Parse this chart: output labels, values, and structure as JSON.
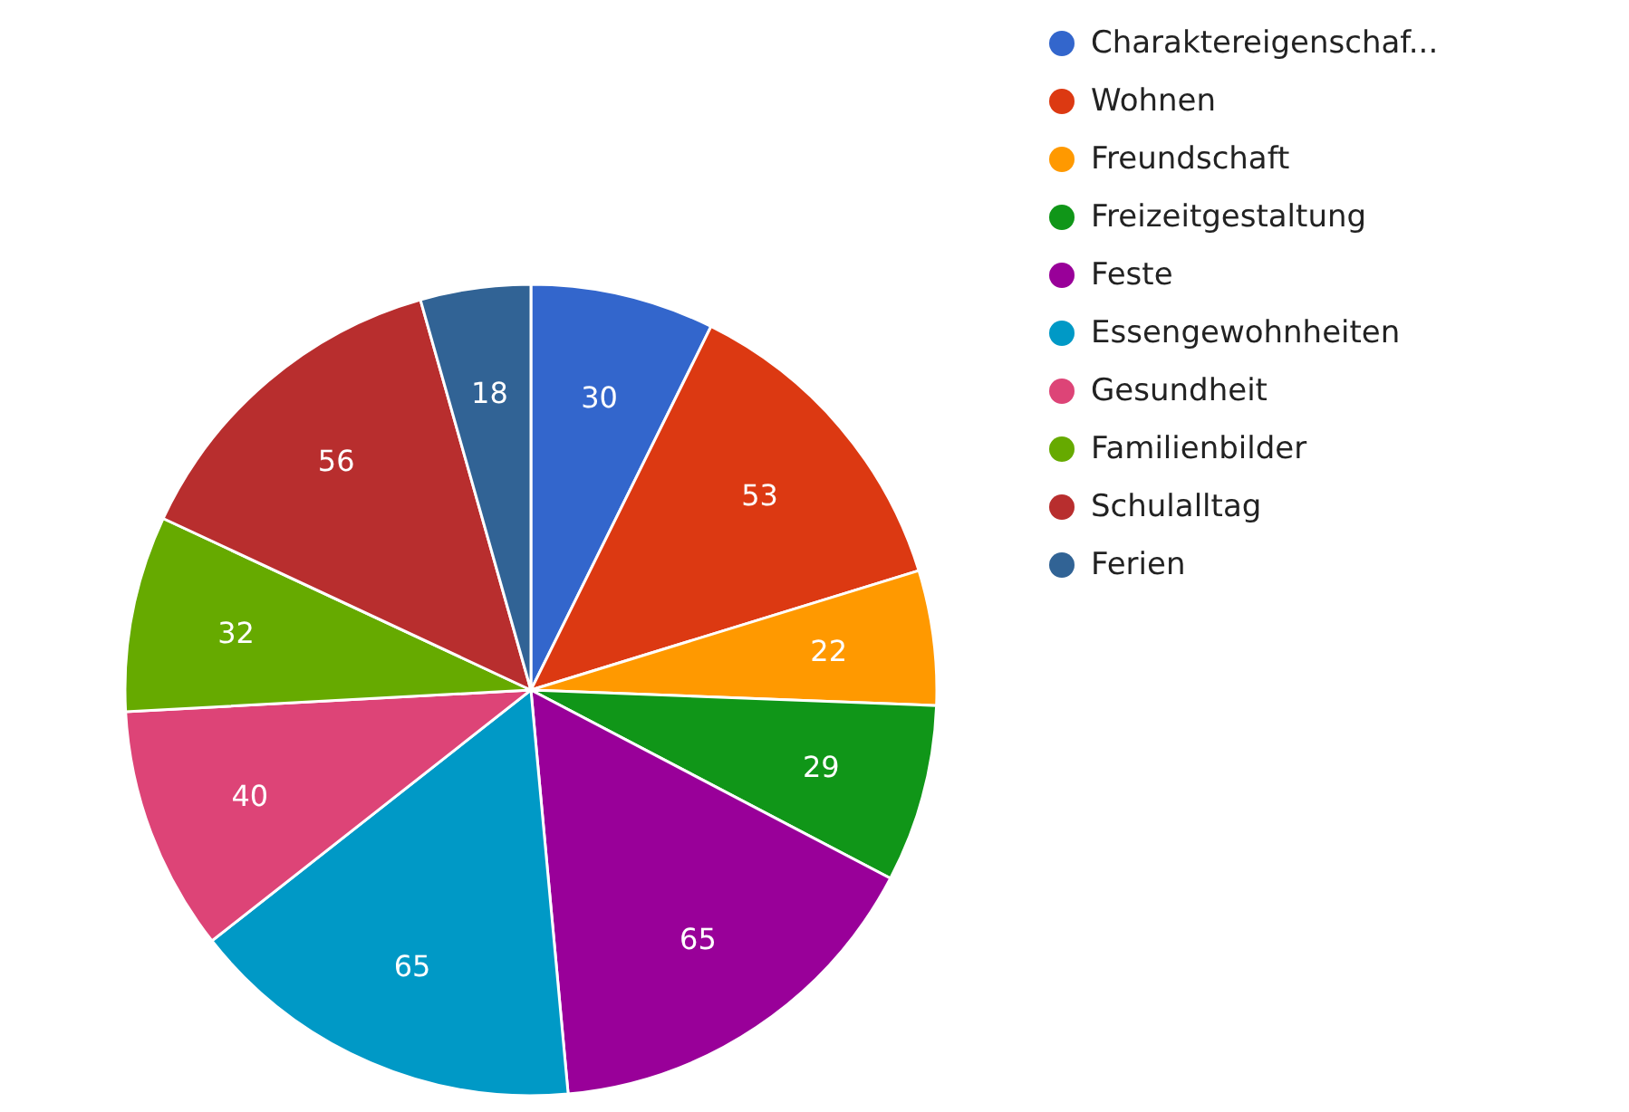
{
  "chart_data": {
    "type": "pie",
    "categories": [
      "Charaktereigenschaf...",
      "Wohnen",
      "Freundschaft",
      "Freizeitgestaltung",
      "Feste",
      "Essengewohnheiten",
      "Gesundheit",
      "Familienbilder",
      "Schulalltag",
      "Ferien"
    ],
    "values": [
      30,
      53,
      22,
      29,
      65,
      65,
      40,
      32,
      56,
      18
    ],
    "colors": [
      "#3366cc",
      "#dc3912",
      "#ff9900",
      "#109618",
      "#990099",
      "#0099c6",
      "#dd4477",
      "#66aa00",
      "#b82e2e",
      "#316395"
    ],
    "data_labels": true,
    "legend": "top right"
  }
}
